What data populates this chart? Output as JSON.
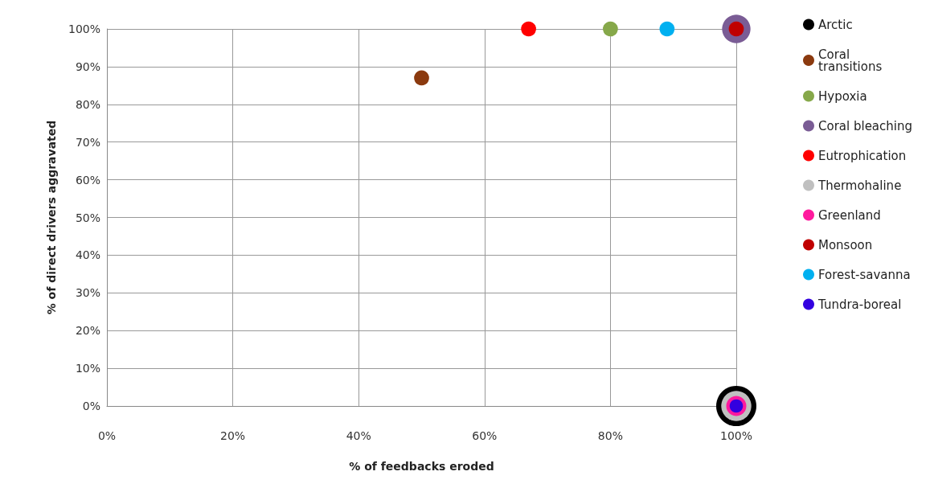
{
  "chart_data": {
    "type": "bubble",
    "xlabel": "% of feedbacks eroded",
    "ylabel": "% of direct drivers aggravated",
    "xlim": [
      0,
      100
    ],
    "ylim": [
      0,
      100
    ],
    "xticks": [
      {
        "value": 0,
        "label": "0%"
      },
      {
        "value": 20,
        "label": "20%"
      },
      {
        "value": 40,
        "label": "40%"
      },
      {
        "value": 60,
        "label": "60%"
      },
      {
        "value": 80,
        "label": "80%"
      },
      {
        "value": 100,
        "label": "100%"
      }
    ],
    "yticks": [
      {
        "value": 0,
        "label": "0%"
      },
      {
        "value": 10,
        "label": "10%"
      },
      {
        "value": 20,
        "label": "20%"
      },
      {
        "value": 30,
        "label": "30%"
      },
      {
        "value": 40,
        "label": "40%"
      },
      {
        "value": 50,
        "label": "50%"
      },
      {
        "value": 60,
        "label": "60%"
      },
      {
        "value": 70,
        "label": "70%"
      },
      {
        "value": 80,
        "label": "80%"
      },
      {
        "value": 90,
        "label": "90%"
      },
      {
        "value": 100,
        "label": "100%"
      }
    ],
    "grid": true,
    "legend": "right",
    "marker": "circle",
    "series": [
      {
        "name": "Arctic",
        "color": "#000000",
        "x": [
          100
        ],
        "values": [
          0
        ],
        "sizes": [
          1
        ]
      },
      {
        "name": "Coral transitions",
        "color": "#8b3a0f",
        "x": [
          50
        ],
        "values": [
          87
        ],
        "sizes": [
          0.14
        ]
      },
      {
        "name": "Hypoxia",
        "color": "#86a84a",
        "x": [
          80
        ],
        "values": [
          100
        ],
        "sizes": [
          0.14
        ]
      },
      {
        "name": "Coral bleaching",
        "color": "#7a5c95",
        "x": [
          100
        ],
        "values": [
          100
        ],
        "sizes": [
          0.5
        ]
      },
      {
        "name": "Eutrophication",
        "color": "#ff0000",
        "x": [
          67
        ],
        "values": [
          100
        ],
        "sizes": [
          0.14
        ]
      },
      {
        "name": "Thermohaline",
        "color": "#c0c0c0",
        "x": [
          100
        ],
        "values": [
          0
        ],
        "sizes": [
          0.56
        ]
      },
      {
        "name": "Greenland",
        "color": "#ff1a9e",
        "x": [
          100
        ],
        "values": [
          0
        ],
        "sizes": [
          0.25
        ]
      },
      {
        "name": "Monsoon",
        "color": "#c00000",
        "x": [
          100
        ],
        "values": [
          100
        ],
        "sizes": [
          0.14
        ]
      },
      {
        "name": "Forest-savanna",
        "color": "#00b0f0",
        "x": [
          89
        ],
        "values": [
          100
        ],
        "sizes": [
          0.14
        ]
      },
      {
        "name": "Tundra-boreal",
        "color": "#3300e0",
        "x": [
          100
        ],
        "values": [
          0
        ],
        "sizes": [
          0.11
        ]
      }
    ]
  }
}
